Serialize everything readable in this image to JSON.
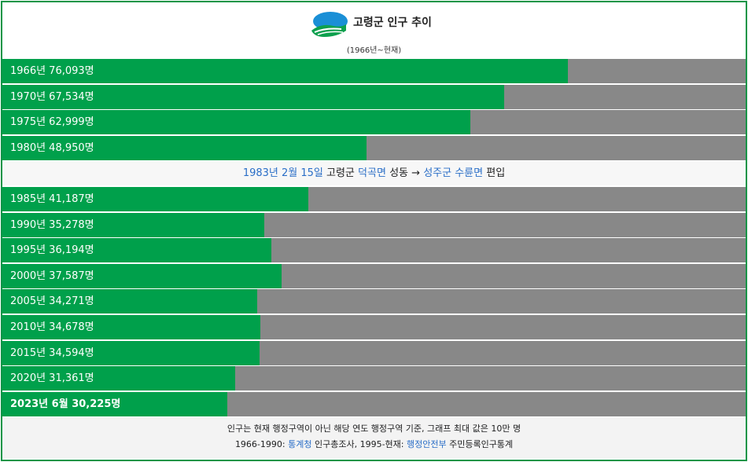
{
  "header": {
    "title": "고령군 인구 추이",
    "subtitle": "(1966년~현재)"
  },
  "colors": {
    "bar": "#00a04b",
    "track": "#888888",
    "border": "#0b9446",
    "link": "#2a6ec7"
  },
  "max_population": 100000,
  "rows_top": [
    {
      "label": "1966년 76,093명",
      "value": 76093
    },
    {
      "label": "1970년 67,534명",
      "value": 67534
    },
    {
      "label": "1975년 62,999명",
      "value": 62999
    },
    {
      "label": "1980년 48,950명",
      "value": 48950
    }
  ],
  "note": {
    "date": "1983년 2월 15일",
    "county": "고령군",
    "town": "덕곡면",
    "place": "성동",
    "arrow": "→",
    "target": "성주군 수륜면",
    "action": "편입"
  },
  "rows_bottom": [
    {
      "label": "1985년 41,187명",
      "value": 41187
    },
    {
      "label": "1990년 35,278명",
      "value": 35278
    },
    {
      "label": "1995년 36,194명",
      "value": 36194
    },
    {
      "label": "2000년 37,587명",
      "value": 37587
    },
    {
      "label": "2005년 34,271명",
      "value": 34271
    },
    {
      "label": "2010년 34,678명",
      "value": 34678
    },
    {
      "label": "2015년 34,594명",
      "value": 34594
    },
    {
      "label": "2020년 31,361명",
      "value": 31361
    },
    {
      "label": "2023년 6월 30,225명",
      "value": 30225,
      "bold": true
    }
  ],
  "footer": {
    "line1": "인구는 현재 행정구역이 아닌 해당 연도 행정구역 기준, 그래프 최대 값은 10만 명",
    "line2_a": "1966-1990: ",
    "line2_link1": "통계청",
    "line2_b": " 인구총조사, 1995-현재: ",
    "line2_link2": "행정안전부",
    "line2_c": " 주민등록인구통계"
  }
}
